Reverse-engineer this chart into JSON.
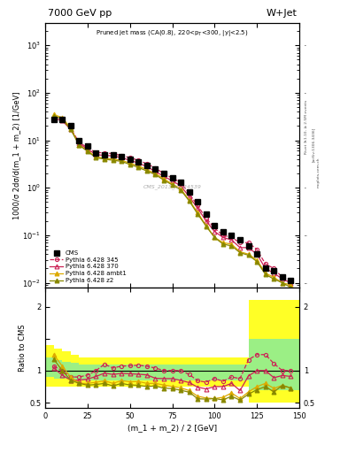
{
  "title_left": "7000 GeV pp",
  "title_right": "W+Jet",
  "plot_title": "Pruned jet mass (CA(0.8), 220<p$_T$<300, |y|<2.5)",
  "xlabel": "(m_1 + m_2) / 2 [GeV]",
  "ylabel_main": "1000/σ 2dσ/d(m_1 + m_2) [1/GeV]",
  "ylabel_ratio": "Ratio to CMS",
  "watermark": "CMS_2013_I1224539",
  "rivet_label": "Rivet 3.1.10, ≥ 2.5M events",
  "arxiv_label": "[arXiv:1306.3436]",
  "mcplots_label": "mcplots.cern.ch",
  "xlim": [
    0,
    150
  ],
  "ylim_main_lo": 0.008,
  "ylim_main_hi": 3000,
  "ylim_ratio_lo": 0.42,
  "ylim_ratio_hi": 2.3,
  "x_mc": [
    5,
    10,
    15,
    20,
    25,
    30,
    35,
    40,
    45,
    50,
    55,
    60,
    65,
    70,
    75,
    80,
    85,
    90,
    95,
    100,
    105,
    110,
    115,
    120,
    125,
    130,
    135,
    140,
    145
  ],
  "y_cms": [
    28,
    28,
    20,
    10,
    7.5,
    5.5,
    5.0,
    5.0,
    4.5,
    4.0,
    3.5,
    3.0,
    2.5,
    2.0,
    1.6,
    1.3,
    0.8,
    0.5,
    0.28,
    0.16,
    0.12,
    0.1,
    0.08,
    0.06,
    0.04,
    0.02,
    0.018,
    0.013,
    0.011
  ],
  "y_345": [
    30,
    28,
    18,
    9,
    7.0,
    5.5,
    5.5,
    5.2,
    4.8,
    4.3,
    3.8,
    3.2,
    2.6,
    2.0,
    1.6,
    1.3,
    0.75,
    0.42,
    0.23,
    0.14,
    0.1,
    0.09,
    0.07,
    0.07,
    0.05,
    0.025,
    0.02,
    0.013,
    0.011
  ],
  "y_370": [
    29,
    26,
    17,
    8.5,
    6.5,
    5.0,
    4.8,
    4.7,
    4.3,
    3.8,
    3.3,
    2.8,
    2.2,
    1.75,
    1.4,
    1.1,
    0.65,
    0.37,
    0.2,
    0.12,
    0.09,
    0.08,
    0.055,
    0.055,
    0.04,
    0.02,
    0.016,
    0.012,
    0.01
  ],
  "y_ambt1": [
    35,
    30,
    18,
    8,
    6.0,
    4.5,
    4.2,
    4.0,
    3.8,
    3.3,
    2.9,
    2.4,
    2.0,
    1.55,
    1.2,
    0.95,
    0.55,
    0.3,
    0.16,
    0.09,
    0.07,
    0.065,
    0.045,
    0.04,
    0.03,
    0.016,
    0.013,
    0.01,
    0.009
  ],
  "y_z2": [
    33,
    28,
    17,
    8,
    5.8,
    4.3,
    4.0,
    3.8,
    3.6,
    3.1,
    2.7,
    2.25,
    1.9,
    1.45,
    1.15,
    0.9,
    0.53,
    0.28,
    0.155,
    0.09,
    0.065,
    0.06,
    0.043,
    0.038,
    0.028,
    0.015,
    0.012,
    0.01,
    0.008
  ],
  "ratio_345": [
    1.07,
    1.0,
    0.9,
    0.9,
    0.93,
    1.0,
    1.1,
    1.04,
    1.07,
    1.075,
    1.086,
    1.067,
    1.04,
    1.0,
    1.0,
    1.0,
    0.94,
    0.84,
    0.82,
    0.875,
    0.833,
    0.9,
    0.875,
    1.17,
    1.25,
    1.25,
    1.11,
    1.0,
    1.0
  ],
  "ratio_370": [
    1.04,
    0.929,
    0.85,
    0.85,
    0.867,
    0.909,
    0.96,
    0.94,
    0.956,
    0.95,
    0.943,
    0.933,
    0.88,
    0.875,
    0.875,
    0.846,
    0.813,
    0.74,
    0.714,
    0.75,
    0.75,
    0.8,
    0.6875,
    0.917,
    1.0,
    1.0,
    0.889,
    0.923,
    0.909
  ],
  "ratio_ambt1": [
    1.25,
    1.071,
    0.9,
    0.8,
    0.8,
    0.818,
    0.84,
    0.8,
    0.844,
    0.825,
    0.829,
    0.8,
    0.8,
    0.775,
    0.75,
    0.731,
    0.688,
    0.6,
    0.571,
    0.5625,
    0.583,
    0.65,
    0.5625,
    0.667,
    0.75,
    0.8,
    0.722,
    0.769,
    0.727
  ],
  "ratio_z2": [
    1.18,
    1.0,
    0.85,
    0.8,
    0.773,
    0.782,
    0.8,
    0.76,
    0.8,
    0.775,
    0.771,
    0.75,
    0.76,
    0.725,
    0.719,
    0.692,
    0.663,
    0.56,
    0.554,
    0.5625,
    0.542,
    0.6,
    0.5375,
    0.633,
    0.7,
    0.75,
    0.667,
    0.769,
    0.727
  ],
  "color_345": "#cc2255",
  "color_370": "#cc2255",
  "color_ambt1": "#ddaa00",
  "color_z2": "#888800",
  "band_x_edges": [
    0,
    5,
    10,
    15,
    20,
    25,
    30,
    35,
    40,
    45,
    50,
    55,
    60,
    65,
    70,
    75,
    80,
    85,
    90,
    95,
    100,
    105,
    110,
    115,
    120,
    125,
    130,
    135,
    140,
    145,
    150
  ],
  "band_yellow_lo": [
    0.75,
    0.75,
    0.75,
    0.75,
    0.75,
    0.75,
    0.75,
    0.75,
    0.75,
    0.75,
    0.75,
    0.75,
    0.75,
    0.75,
    0.75,
    0.75,
    0.75,
    0.75,
    0.75,
    0.75,
    0.75,
    0.75,
    0.75,
    0.75,
    0.5,
    0.5,
    0.5,
    0.5,
    0.5,
    0.5
  ],
  "band_yellow_hi": [
    1.4,
    1.35,
    1.3,
    1.25,
    1.2,
    1.2,
    1.2,
    1.2,
    1.2,
    1.2,
    1.2,
    1.2,
    1.2,
    1.2,
    1.2,
    1.2,
    1.2,
    1.2,
    1.2,
    1.2,
    1.2,
    1.2,
    1.2,
    1.2,
    2.1,
    2.1,
    2.1,
    2.1,
    2.1,
    2.1
  ],
  "band_green_lo": [
    0.9,
    0.88,
    0.87,
    0.86,
    0.85,
    0.85,
    0.85,
    0.85,
    0.85,
    0.85,
    0.85,
    0.85,
    0.85,
    0.85,
    0.85,
    0.85,
    0.85,
    0.85,
    0.85,
    0.85,
    0.85,
    0.85,
    0.85,
    0.85,
    0.7,
    0.7,
    0.7,
    0.7,
    0.7,
    0.7
  ],
  "band_green_hi": [
    1.2,
    1.17,
    1.14,
    1.12,
    1.1,
    1.1,
    1.1,
    1.1,
    1.1,
    1.1,
    1.1,
    1.1,
    1.1,
    1.1,
    1.1,
    1.1,
    1.1,
    1.1,
    1.1,
    1.1,
    1.1,
    1.1,
    1.1,
    1.1,
    1.5,
    1.5,
    1.5,
    1.5,
    1.5,
    1.5
  ],
  "bg_color": "#ffffff"
}
